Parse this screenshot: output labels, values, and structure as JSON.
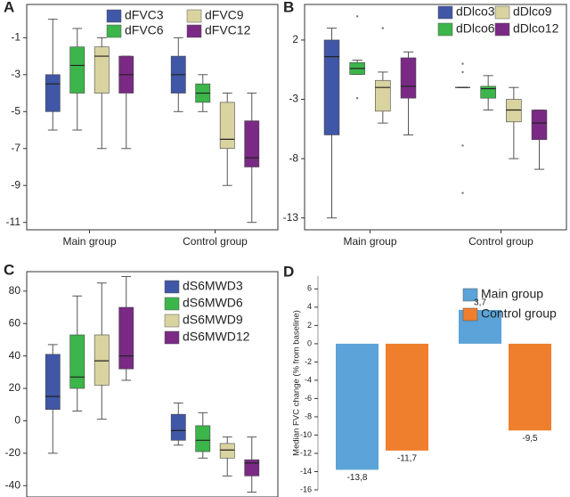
{
  "chart_data": [
    {
      "type": "box",
      "label": "A",
      "categories": [
        "Main group",
        "Control group"
      ],
      "ylim": [
        -11.4,
        0.8
      ],
      "yticks": [
        -1,
        -3,
        -5,
        -7,
        -9,
        -11
      ],
      "series": [
        {
          "name": "dFVC3",
          "color": "#3f57a6",
          "values": [
            {
              "min": -6,
              "q1": -5,
              "median": -3.5,
              "q3": -3,
              "max": 0
            },
            {
              "min": -5,
              "q1": -4,
              "median": -3,
              "q3": -2,
              "max": -1
            }
          ]
        },
        {
          "name": "dFVC6",
          "color": "#3cb54a",
          "values": [
            {
              "min": -6,
              "q1": -4,
              "median": -2.5,
              "q3": -1.5,
              "max": -0.5
            },
            {
              "min": -5,
              "q1": -4.5,
              "median": -4,
              "q3": -3.5,
              "max": -3
            }
          ]
        },
        {
          "name": "dFVC9",
          "color": "#d9d3a0",
          "values": [
            {
              "min": -7,
              "q1": -4,
              "median": -2,
              "q3": -1.5,
              "max": -1
            },
            {
              "min": -9,
              "q1": -7,
              "median": -6.5,
              "q3": -4.5,
              "max": -4
            }
          ]
        },
        {
          "name": "dFVC12",
          "color": "#7a2a84",
          "values": [
            {
              "min": -7,
              "q1": -4,
              "median": -3,
              "q3": -2,
              "max": -2
            },
            {
              "min": -11,
              "q1": -8,
              "median": -7.5,
              "q3": -5.5,
              "max": -4
            }
          ]
        }
      ]
    },
    {
      "type": "box",
      "label": "B",
      "categories": [
        "Main group",
        "Control group"
      ],
      "ylim": [
        -14,
        5
      ],
      "yticks": [
        2,
        -3,
        -8,
        -13
      ],
      "series": [
        {
          "name": "dDlco3",
          "color": "#3f57a6",
          "values": [
            {
              "min": -13,
              "q1": -6,
              "median": 0.6,
              "q3": 2,
              "max": 3
            },
            {
              "min": -2,
              "q1": -2,
              "median": -2,
              "q3": -2,
              "max": -2,
              "outliers": [
                0,
                -0.7,
                -6.9,
                -10.9
              ]
            }
          ]
        },
        {
          "name": "dDlco6",
          "color": "#3cb54a",
          "values": [
            {
              "min": -0.9,
              "q1": -0.9,
              "median": -0.4,
              "q3": 0.1,
              "max": 0.3,
              "outliers": [
                4,
                -2.9
              ]
            },
            {
              "min": -3.9,
              "q1": -2.9,
              "median": -2.1,
              "q3": -1.9,
              "max": -1
            }
          ]
        },
        {
          "name": "dDlco9",
          "color": "#d9d3a0",
          "values": [
            {
              "min": -5,
              "q1": -4,
              "median": -2,
              "q3": -1.4,
              "max": -0.7,
              "outliers": [
                3
              ]
            },
            {
              "min": -8,
              "q1": -4.9,
              "median": -3.9,
              "q3": -3,
              "max": -2
            }
          ]
        },
        {
          "name": "dDlco12",
          "color": "#7a2a84",
          "values": [
            {
              "min": -6,
              "q1": -2.9,
              "median": -1.9,
              "q3": 0.5,
              "max": 1
            },
            {
              "min": -8.9,
              "q1": -6.4,
              "median": -5,
              "q3": -3.9,
              "max": -3.9
            }
          ]
        }
      ]
    },
    {
      "type": "box",
      "label": "C",
      "categories": [
        null,
        null
      ],
      "ylim": [
        -47,
        92
      ],
      "yticks": [
        80,
        60,
        40,
        20,
        0,
        -20,
        -40
      ],
      "series": [
        {
          "name": "dS6MWD3",
          "color": "#3f57a6",
          "values": [
            {
              "min": -20,
              "q1": 7,
              "median": 15,
              "q3": 41,
              "max": 47
            },
            {
              "min": -15,
              "q1": -12,
              "median": -6,
              "q3": 4,
              "max": 11
            }
          ]
        },
        {
          "name": "dS6MWD6",
          "color": "#3cb54a",
          "values": [
            {
              "min": 6,
              "q1": 20,
              "median": 27,
              "q3": 53,
              "max": 77
            },
            {
              "min": -23,
              "q1": -19,
              "median": -12,
              "q3": -3,
              "max": 5
            }
          ]
        },
        {
          "name": "dS6MWD9",
          "color": "#d9d3a0",
          "values": [
            {
              "min": 1,
              "q1": 22,
              "median": 37,
              "q3": 53,
              "max": 85
            },
            {
              "min": -34,
              "q1": -23,
              "median": -18,
              "q3": -14,
              "max": -10
            }
          ]
        },
        {
          "name": "dS6MWD12",
          "color": "#7a2a84",
          "values": [
            {
              "min": 25,
              "q1": 32,
              "median": 40,
              "q3": 70,
              "max": 89
            },
            {
              "min": -44,
              "q1": -34,
              "median": -26,
              "q3": -24,
              "max": -10
            }
          ]
        }
      ]
    },
    {
      "type": "bar",
      "label": "D",
      "y_label": "Median FVC change  (% from baseline)",
      "categories": [
        null,
        null
      ],
      "ylim": [
        -16,
        7.4
      ],
      "yticks": [
        6,
        4,
        2,
        0,
        -2,
        -4,
        -6,
        -8,
        -10,
        -12,
        -14,
        -16
      ],
      "series": [
        {
          "name": "Main group",
          "color": "#5ba3d9",
          "values": [
            -13.8,
            3.7
          ],
          "value_labels": [
            "-13,8",
            "3,7"
          ]
        },
        {
          "name": "Control group",
          "color": "#f07f2d",
          "values": [
            -11.7,
            -9.5
          ],
          "value_labels": [
            "-11,7",
            "-9,5"
          ]
        }
      ]
    }
  ]
}
